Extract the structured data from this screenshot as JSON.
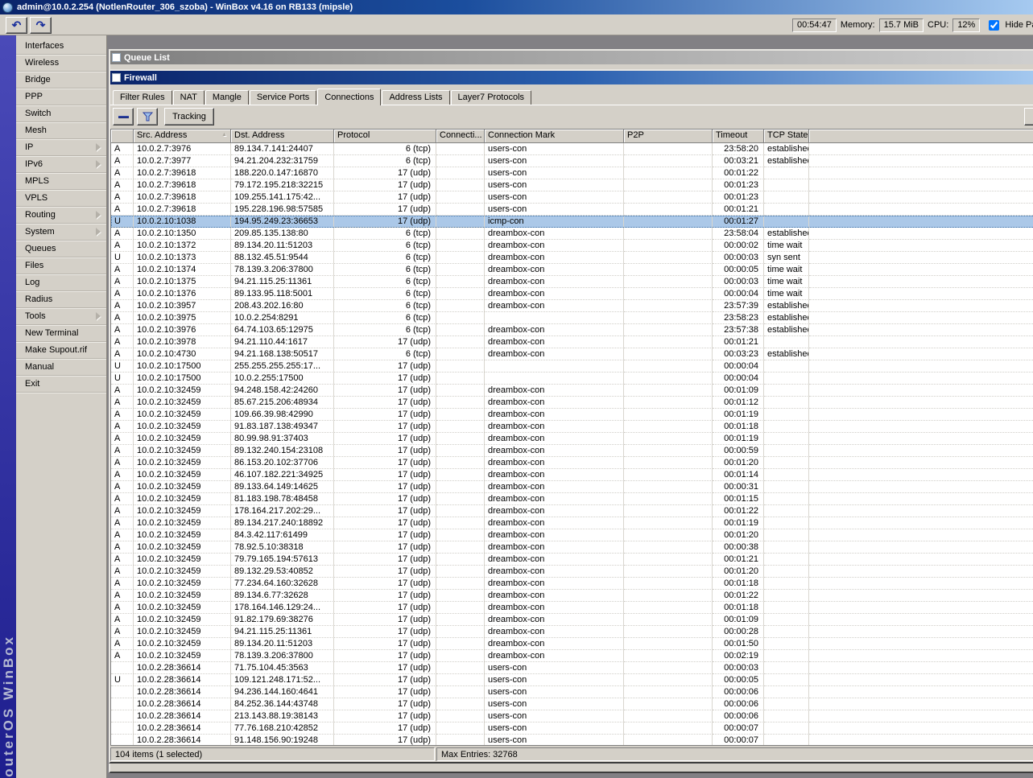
{
  "app": {
    "title": "admin@10.0.2.254 (NotlenRouter_306_szoba) - WinBox v4.16 on RB133 (mipsle)",
    "brand_vertical_text": "RouterOS WinBox",
    "toolbar": {
      "undo_icon": "↶",
      "redo_icon": "↷",
      "uptime": "00:54:47",
      "memory_label": "Memory:",
      "memory_value": "15.7 MiB",
      "cpu_label": "CPU:",
      "cpu_value": "12%",
      "hide_passwords_label": "Hide Passwords",
      "hide_passwords_checked": true
    }
  },
  "sidebar": {
    "items": [
      {
        "label": "Interfaces",
        "has_submenu": false
      },
      {
        "label": "Wireless",
        "has_submenu": false
      },
      {
        "label": "Bridge",
        "has_submenu": false
      },
      {
        "label": "PPP",
        "has_submenu": false
      },
      {
        "label": "Switch",
        "has_submenu": false
      },
      {
        "label": "Mesh",
        "has_submenu": false
      },
      {
        "label": "IP",
        "has_submenu": true
      },
      {
        "label": "IPv6",
        "has_submenu": true
      },
      {
        "label": "MPLS",
        "has_submenu": false
      },
      {
        "label": "VPLS",
        "has_submenu": false
      },
      {
        "label": "Routing",
        "has_submenu": true
      },
      {
        "label": "System",
        "has_submenu": true
      },
      {
        "label": "Queues",
        "has_submenu": false
      },
      {
        "label": "Files",
        "has_submenu": false
      },
      {
        "label": "Log",
        "has_submenu": false
      },
      {
        "label": "Radius",
        "has_submenu": false
      },
      {
        "label": "Tools",
        "has_submenu": true
      },
      {
        "label": "New Terminal",
        "has_submenu": false
      },
      {
        "label": "Make Supout.rif",
        "has_submenu": false
      },
      {
        "label": "Manual",
        "has_submenu": false
      },
      {
        "label": "Exit",
        "has_submenu": false
      }
    ]
  },
  "queue_window": {
    "title": "Queue List"
  },
  "firewall": {
    "title": "Firewall",
    "tabs": [
      {
        "label": "Filter Rules",
        "active": false
      },
      {
        "label": "NAT",
        "active": false
      },
      {
        "label": "Mangle",
        "active": false
      },
      {
        "label": "Service Ports",
        "active": false
      },
      {
        "label": "Connections",
        "active": true
      },
      {
        "label": "Address Lists",
        "active": false
      },
      {
        "label": "Layer7 Protocols",
        "active": false
      }
    ],
    "toolbar": {
      "tracking_label": "Tracking"
    },
    "table": {
      "columns": [
        "",
        "Src. Address",
        "Dst. Address",
        "Protocol",
        "Connecti...",
        "Connection Mark",
        "P2P",
        "Timeout",
        "TCP State"
      ],
      "sorted_column": "Src. Address",
      "selected_row_index": 6,
      "rows": [
        [
          "A",
          "10.0.2.7:3976",
          "89.134.7.141:24407",
          "6 (tcp)",
          "",
          "users-con",
          "",
          "23:58:20",
          "established"
        ],
        [
          "A",
          "10.0.2.7:3977",
          "94.21.204.232:31759",
          "6 (tcp)",
          "",
          "users-con",
          "",
          "00:03:21",
          "established"
        ],
        [
          "A",
          "10.0.2.7:39618",
          "188.220.0.147:16870",
          "17 (udp)",
          "",
          "users-con",
          "",
          "00:01:22",
          ""
        ],
        [
          "A",
          "10.0.2.7:39618",
          "79.172.195.218:32215",
          "17 (udp)",
          "",
          "users-con",
          "",
          "00:01:23",
          ""
        ],
        [
          "A",
          "10.0.2.7:39618",
          "109.255.141.175:42...",
          "17 (udp)",
          "",
          "users-con",
          "",
          "00:01:23",
          ""
        ],
        [
          "A",
          "10.0.2.7:39618",
          "195.228.196.98:57585",
          "17 (udp)",
          "",
          "users-con",
          "",
          "00:01:21",
          ""
        ],
        [
          "U",
          "10.0.2.10:1038",
          "194.95.249.23:36653",
          "17 (udp)",
          "",
          "icmp-con",
          "",
          "00:01:27",
          ""
        ],
        [
          "A",
          "10.0.2.10:1350",
          "209.85.135.138:80",
          "6 (tcp)",
          "",
          "dreambox-con",
          "",
          "23:58:04",
          "established"
        ],
        [
          "A",
          "10.0.2.10:1372",
          "89.134.20.11:51203",
          "6 (tcp)",
          "",
          "dreambox-con",
          "",
          "00:00:02",
          "time wait"
        ],
        [
          "U",
          "10.0.2.10:1373",
          "88.132.45.51:9544",
          "6 (tcp)",
          "",
          "dreambox-con",
          "",
          "00:00:03",
          "syn sent"
        ],
        [
          "A",
          "10.0.2.10:1374",
          "78.139.3.206:37800",
          "6 (tcp)",
          "",
          "dreambox-con",
          "",
          "00:00:05",
          "time wait"
        ],
        [
          "A",
          "10.0.2.10:1375",
          "94.21.115.25:11361",
          "6 (tcp)",
          "",
          "dreambox-con",
          "",
          "00:00:03",
          "time wait"
        ],
        [
          "A",
          "10.0.2.10:1376",
          "89.133.95.118:5001",
          "6 (tcp)",
          "",
          "dreambox-con",
          "",
          "00:00:04",
          "time wait"
        ],
        [
          "A",
          "10.0.2.10:3957",
          "208.43.202.16:80",
          "6 (tcp)",
          "",
          "dreambox-con",
          "",
          "23:57:39",
          "established"
        ],
        [
          "A",
          "10.0.2.10:3975",
          "10.0.2.254:8291",
          "6 (tcp)",
          "",
          "",
          "",
          "23:58:23",
          "established"
        ],
        [
          "A",
          "10.0.2.10:3976",
          "64.74.103.65:12975",
          "6 (tcp)",
          "",
          "dreambox-con",
          "",
          "23:57:38",
          "established"
        ],
        [
          "A",
          "10.0.2.10:3978",
          "94.21.110.44:1617",
          "17 (udp)",
          "",
          "dreambox-con",
          "",
          "00:01:21",
          ""
        ],
        [
          "A",
          "10.0.2.10:4730",
          "94.21.168.138:50517",
          "6 (tcp)",
          "",
          "dreambox-con",
          "",
          "00:03:23",
          "established"
        ],
        [
          "U",
          "10.0.2.10:17500",
          "255.255.255.255:17...",
          "17 (udp)",
          "",
          "",
          "",
          "00:00:04",
          ""
        ],
        [
          "U",
          "10.0.2.10:17500",
          "10.0.2.255:17500",
          "17 (udp)",
          "",
          "",
          "",
          "00:00:04",
          ""
        ],
        [
          "A",
          "10.0.2.10:32459",
          "94.248.158.42:24260",
          "17 (udp)",
          "",
          "dreambox-con",
          "",
          "00:01:09",
          ""
        ],
        [
          "A",
          "10.0.2.10:32459",
          "85.67.215.206:48934",
          "17 (udp)",
          "",
          "dreambox-con",
          "",
          "00:01:12",
          ""
        ],
        [
          "A",
          "10.0.2.10:32459",
          "109.66.39.98:42990",
          "17 (udp)",
          "",
          "dreambox-con",
          "",
          "00:01:19",
          ""
        ],
        [
          "A",
          "10.0.2.10:32459",
          "91.83.187.138:49347",
          "17 (udp)",
          "",
          "dreambox-con",
          "",
          "00:01:18",
          ""
        ],
        [
          "A",
          "10.0.2.10:32459",
          "80.99.98.91:37403",
          "17 (udp)",
          "",
          "dreambox-con",
          "",
          "00:01:19",
          ""
        ],
        [
          "A",
          "10.0.2.10:32459",
          "89.132.240.154:23108",
          "17 (udp)",
          "",
          "dreambox-con",
          "",
          "00:00:59",
          ""
        ],
        [
          "A",
          "10.0.2.10:32459",
          "86.153.20.102:37706",
          "17 (udp)",
          "",
          "dreambox-con",
          "",
          "00:01:20",
          ""
        ],
        [
          "A",
          "10.0.2.10:32459",
          "46.107.182.221:34925",
          "17 (udp)",
          "",
          "dreambox-con",
          "",
          "00:01:14",
          ""
        ],
        [
          "A",
          "10.0.2.10:32459",
          "89.133.64.149:14625",
          "17 (udp)",
          "",
          "dreambox-con",
          "",
          "00:00:31",
          ""
        ],
        [
          "A",
          "10.0.2.10:32459",
          "81.183.198.78:48458",
          "17 (udp)",
          "",
          "dreambox-con",
          "",
          "00:01:15",
          ""
        ],
        [
          "A",
          "10.0.2.10:32459",
          "178.164.217.202:29...",
          "17 (udp)",
          "",
          "dreambox-con",
          "",
          "00:01:22",
          ""
        ],
        [
          "A",
          "10.0.2.10:32459",
          "89.134.217.240:18892",
          "17 (udp)",
          "",
          "dreambox-con",
          "",
          "00:01:19",
          ""
        ],
        [
          "A",
          "10.0.2.10:32459",
          "84.3.42.117:61499",
          "17 (udp)",
          "",
          "dreambox-con",
          "",
          "00:01:20",
          ""
        ],
        [
          "A",
          "10.0.2.10:32459",
          "78.92.5.10:38318",
          "17 (udp)",
          "",
          "dreambox-con",
          "",
          "00:00:38",
          ""
        ],
        [
          "A",
          "10.0.2.10:32459",
          "79.79.165.194:57613",
          "17 (udp)",
          "",
          "dreambox-con",
          "",
          "00:01:21",
          ""
        ],
        [
          "A",
          "10.0.2.10:32459",
          "89.132.29.53:40852",
          "17 (udp)",
          "",
          "dreambox-con",
          "",
          "00:01:20",
          ""
        ],
        [
          "A",
          "10.0.2.10:32459",
          "77.234.64.160:32628",
          "17 (udp)",
          "",
          "dreambox-con",
          "",
          "00:01:18",
          ""
        ],
        [
          "A",
          "10.0.2.10:32459",
          "89.134.6.77:32628",
          "17 (udp)",
          "",
          "dreambox-con",
          "",
          "00:01:22",
          ""
        ],
        [
          "A",
          "10.0.2.10:32459",
          "178.164.146.129:24...",
          "17 (udp)",
          "",
          "dreambox-con",
          "",
          "00:01:18",
          ""
        ],
        [
          "A",
          "10.0.2.10:32459",
          "91.82.179.69:38276",
          "17 (udp)",
          "",
          "dreambox-con",
          "",
          "00:01:09",
          ""
        ],
        [
          "A",
          "10.0.2.10:32459",
          "94.21.115.25:11361",
          "17 (udp)",
          "",
          "dreambox-con",
          "",
          "00:00:28",
          ""
        ],
        [
          "A",
          "10.0.2.10:32459",
          "89.134.20.11:51203",
          "17 (udp)",
          "",
          "dreambox-con",
          "",
          "00:01:50",
          ""
        ],
        [
          "A",
          "10.0.2.10:32459",
          "78.139.3.206:37800",
          "17 (udp)",
          "",
          "dreambox-con",
          "",
          "00:02:19",
          ""
        ],
        [
          "",
          "10.0.2.28:36614",
          "71.75.104.45:3563",
          "17 (udp)",
          "",
          "users-con",
          "",
          "00:00:03",
          ""
        ],
        [
          "U",
          "10.0.2.28:36614",
          "109.121.248.171:52...",
          "17 (udp)",
          "",
          "users-con",
          "",
          "00:00:05",
          ""
        ],
        [
          "",
          "10.0.2.28:36614",
          "94.236.144.160:4641",
          "17 (udp)",
          "",
          "users-con",
          "",
          "00:00:06",
          ""
        ],
        [
          "",
          "10.0.2.28:36614",
          "84.252.36.144:43748",
          "17 (udp)",
          "",
          "users-con",
          "",
          "00:00:06",
          ""
        ],
        [
          "",
          "10.0.2.28:36614",
          "213.143.88.19:38143",
          "17 (udp)",
          "",
          "users-con",
          "",
          "00:00:06",
          ""
        ],
        [
          "",
          "10.0.2.28:36614",
          "77.76.168.210:42852",
          "17 (udp)",
          "",
          "users-con",
          "",
          "00:00:07",
          ""
        ],
        [
          "",
          "10.0.2.28:36614",
          "91.148.156.90:19248",
          "17 (udp)",
          "",
          "users-con",
          "",
          "00:00:07",
          ""
        ]
      ]
    },
    "status": {
      "items_text": "104 items (1 selected)",
      "max_entries_text": "Max Entries: 32768"
    }
  },
  "colors": {
    "window_face": "#d4d0c8",
    "active_caption_start": "#0a246a",
    "active_caption_end": "#a6caf0",
    "inactive_caption_start": "#7f7f7f",
    "inactive_caption_end": "#cfcfcf",
    "row_selection": "#abc8e8",
    "brand_strip_blue": "#3434a6",
    "mdi_background": "#828084",
    "toolbar_icon_blue": "#2b3f9e"
  }
}
